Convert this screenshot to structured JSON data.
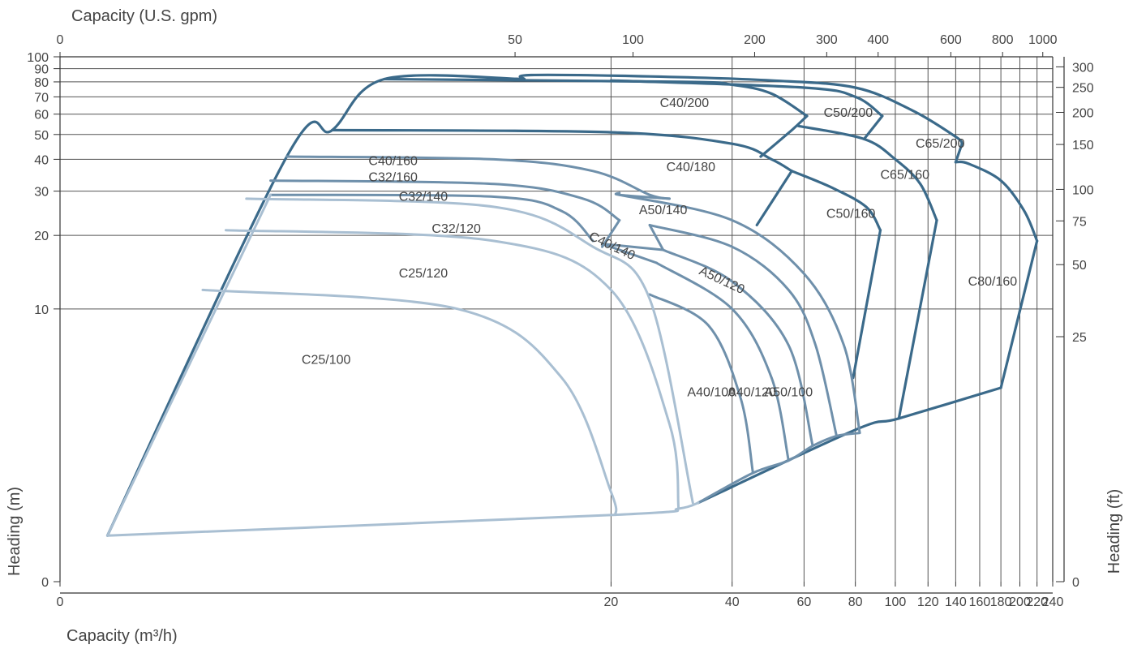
{
  "chart_data": {
    "type": "line",
    "title": "",
    "x_axis_bottom": {
      "label": "Capacity  (m³/h)",
      "scale": "log(1+x)",
      "range": [
        0,
        240
      ],
      "ticks": [
        0,
        20,
        40,
        60,
        80,
        100,
        120,
        140,
        160,
        180,
        200,
        220,
        240
      ]
    },
    "x_axis_top": {
      "label": "Capacity  (U.S. gpm)",
      "range": [
        0,
        1000
      ],
      "ticks": [
        0,
        50,
        100,
        200,
        300,
        400,
        600,
        800,
        1000
      ]
    },
    "y_axis_left": {
      "label": "Heading (m)",
      "scale": "log(1+y)",
      "range": [
        0,
        100
      ],
      "ticks": [
        0,
        10,
        20,
        30,
        40,
        50,
        60,
        70,
        80,
        90,
        100
      ]
    },
    "y_axis_right": {
      "label": "Heading (ft)",
      "ticks": [
        0,
        25,
        50,
        75,
        100,
        150,
        200,
        250,
        300
      ]
    },
    "grid": true,
    "colors": {
      "dark": "#3b6a8a",
      "medium": "#6f90ab",
      "light": "#a9bfd2",
      "grid": "#555555"
    },
    "regions": [
      {
        "name": "C40/200",
        "x": 26.5,
        "y": 64
      },
      {
        "name": "C50/200",
        "x": 67,
        "y": 58.5
      },
      {
        "name": "C65/200",
        "x": 112,
        "y": 44.5
      },
      {
        "name": "C40/180",
        "x": 27.5,
        "y": 36
      },
      {
        "name": "C65/160",
        "x": 92,
        "y": 33.5
      },
      {
        "name": "C50/160",
        "x": 68,
        "y": 23.5
      },
      {
        "name": "C80/160",
        "x": 150,
        "y": 12.5
      },
      {
        "name": "C40/160",
        "x": 4.5,
        "y": 38
      },
      {
        "name": "C32/160",
        "x": 4.5,
        "y": 32.8
      },
      {
        "name": "C32/140",
        "x": 5.5,
        "y": 27.5
      },
      {
        "name": "A50/140",
        "x": 23.5,
        "y": 24.3
      },
      {
        "name": "C32/120",
        "x": 6.8,
        "y": 20.5
      },
      {
        "name": "C40/140",
        "x": 17.5,
        "y": 19.3,
        "rotate": 25
      },
      {
        "name": "A50/120",
        "x": 33,
        "y": 14,
        "rotate": 25
      },
      {
        "name": "C25/120",
        "x": 5.5,
        "y": 13.5
      },
      {
        "name": "C25/100",
        "x": 2.8,
        "y": 5.8
      },
      {
        "name": "A40/100",
        "x": 31,
        "y": 4.1
      },
      {
        "name": "A40/120",
        "x": 39,
        "y": 4.1
      },
      {
        "name": "A50/100",
        "x": 48,
        "y": 4.1
      }
    ],
    "series": [
      {
        "tone": "dark",
        "points": [
          [
            0.3,
            0.5
          ],
          [
            2.5,
            41
          ],
          [
            3.5,
            52
          ],
          [
            5,
            82
          ],
          [
            12,
            82
          ]
        ]
      },
      {
        "tone": "dark",
        "points": [
          [
            5,
            82
          ],
          [
            30,
            80
          ],
          [
            40,
            78
          ],
          [
            50,
            72
          ],
          [
            61,
            59
          ]
        ]
      },
      {
        "tone": "dark",
        "points": [
          [
            61,
            59
          ],
          [
            56,
            52
          ],
          [
            47,
            41
          ]
        ]
      },
      {
        "tone": "dark",
        "points": [
          [
            12,
            82
          ],
          [
            12.5,
            85
          ],
          [
            25,
            84
          ],
          [
            50,
            81
          ],
          [
            80,
            76
          ],
          [
            110,
            62
          ],
          [
            140,
            49
          ],
          [
            145,
            46
          ]
        ]
      },
      {
        "tone": "dark",
        "points": [
          [
            145,
            46
          ],
          [
            140,
            39
          ]
        ]
      },
      {
        "tone": "dark",
        "points": [
          [
            20,
            81
          ],
          [
            60,
            76
          ],
          [
            80,
            70
          ],
          [
            93,
            59
          ]
        ]
      },
      {
        "tone": "dark",
        "points": [
          [
            93,
            59
          ],
          [
            84,
            48
          ]
        ]
      },
      {
        "tone": "dark",
        "points": [
          [
            3.5,
            52
          ],
          [
            20,
            51
          ],
          [
            40,
            46
          ],
          [
            50,
            40
          ],
          [
            56,
            36
          ]
        ]
      },
      {
        "tone": "dark",
        "points": [
          [
            56,
            36
          ],
          [
            46,
            22
          ]
        ]
      },
      {
        "tone": "dark",
        "points": [
          [
            58,
            54
          ],
          [
            84,
            48
          ],
          [
            100,
            40
          ],
          [
            115,
            32
          ],
          [
            126,
            23
          ]
        ]
      },
      {
        "tone": "dark",
        "points": [
          [
            126,
            23
          ],
          [
            102,
            3.2
          ]
        ]
      },
      {
        "tone": "dark",
        "points": [
          [
            56,
            36
          ],
          [
            70,
            31
          ],
          [
            85,
            26
          ],
          [
            92,
            21
          ]
        ]
      },
      {
        "tone": "dark",
        "points": [
          [
            92,
            21
          ],
          [
            79,
            5
          ]
        ]
      },
      {
        "tone": "dark",
        "points": [
          [
            140,
            39
          ],
          [
            150,
            38.5
          ],
          [
            180,
            33
          ],
          [
            205,
            25
          ],
          [
            220,
            19
          ]
        ]
      },
      {
        "tone": "dark",
        "points": [
          [
            220,
            19
          ],
          [
            180,
            4.5
          ]
        ]
      },
      {
        "tone": "dark",
        "points": [
          [
            33,
            1
          ],
          [
            80,
            2.8
          ],
          [
            102,
            3.2
          ],
          [
            180,
            4.5
          ]
        ]
      },
      {
        "tone": "medium",
        "points": [
          [
            2.5,
            41
          ],
          [
            10,
            40
          ],
          [
            18,
            36
          ],
          [
            25,
            29
          ],
          [
            28,
            28
          ]
        ]
      },
      {
        "tone": "medium",
        "points": [
          [
            28,
            28
          ],
          [
            21,
            29
          ],
          [
            21,
            29.5
          ]
        ]
      },
      {
        "tone": "medium",
        "points": [
          [
            21,
            29
          ],
          [
            40,
            23
          ],
          [
            60,
            14
          ],
          [
            75,
            7
          ],
          [
            82,
            2.7
          ]
        ]
      },
      {
        "tone": "medium",
        "points": [
          [
            2.2,
            33
          ],
          [
            10,
            32
          ],
          [
            17,
            28
          ],
          [
            21,
            23
          ]
        ]
      },
      {
        "tone": "medium",
        "points": [
          [
            21,
            23
          ],
          [
            19,
            18
          ]
        ]
      },
      {
        "tone": "medium",
        "points": [
          [
            2.2,
            29
          ],
          [
            10,
            28.5
          ],
          [
            15,
            25
          ],
          [
            18,
            19
          ]
        ]
      },
      {
        "tone": "medium",
        "points": [
          [
            19,
            18.5
          ],
          [
            27,
            17.5
          ]
        ]
      },
      {
        "tone": "medium",
        "points": [
          [
            27,
            17.5
          ],
          [
            25,
            22
          ]
        ]
      },
      {
        "tone": "medium",
        "points": [
          [
            25,
            22
          ],
          [
            40,
            18
          ],
          [
            55,
            12
          ],
          [
            64,
            7
          ],
          [
            72,
            2.6
          ]
        ]
      },
      {
        "tone": "medium",
        "points": [
          [
            27,
            17.5
          ],
          [
            40,
            13
          ],
          [
            55,
            7
          ],
          [
            63,
            2.3
          ]
        ]
      },
      {
        "tone": "medium",
        "points": [
          [
            19,
            18.5
          ],
          [
            26,
            15.5
          ]
        ]
      },
      {
        "tone": "medium",
        "points": [
          [
            26,
            15.5
          ],
          [
            40,
            10
          ],
          [
            50,
            5
          ],
          [
            55,
            1.9
          ]
        ]
      },
      {
        "tone": "medium",
        "points": [
          [
            25,
            11.5
          ],
          [
            35,
            8.5
          ],
          [
            42,
            4
          ],
          [
            45,
            1.6
          ]
        ]
      },
      {
        "tone": "medium",
        "points": [
          [
            33,
            1
          ],
          [
            45,
            1.6
          ],
          [
            55,
            1.9
          ],
          [
            63,
            2.3
          ],
          [
            72,
            2.6
          ],
          [
            82,
            2.7
          ]
        ]
      },
      {
        "tone": "light",
        "points": [
          [
            2.2,
            29
          ],
          [
            0.3,
            0.5
          ]
        ]
      },
      {
        "tone": "light",
        "points": [
          [
            1.8,
            28
          ],
          [
            10,
            26
          ],
          [
            18,
            18
          ],
          [
            25,
            11
          ],
          [
            32,
            1
          ]
        ]
      },
      {
        "tone": "light",
        "points": [
          [
            1.5,
            21
          ],
          [
            10,
            19
          ],
          [
            20,
            12
          ],
          [
            28,
            3
          ],
          [
            29.5,
            0.9
          ]
        ]
      },
      {
        "tone": "light",
        "points": [
          [
            1.2,
            12
          ],
          [
            8,
            10
          ],
          [
            15,
            5
          ],
          [
            20,
            1.2
          ],
          [
            20.5,
            0.8
          ]
        ]
      },
      {
        "tone": "light",
        "points": [
          [
            0.3,
            0.5
          ],
          [
            20.5,
            0.8
          ],
          [
            29.5,
            0.9
          ],
          [
            33,
            1
          ]
        ]
      }
    ]
  }
}
